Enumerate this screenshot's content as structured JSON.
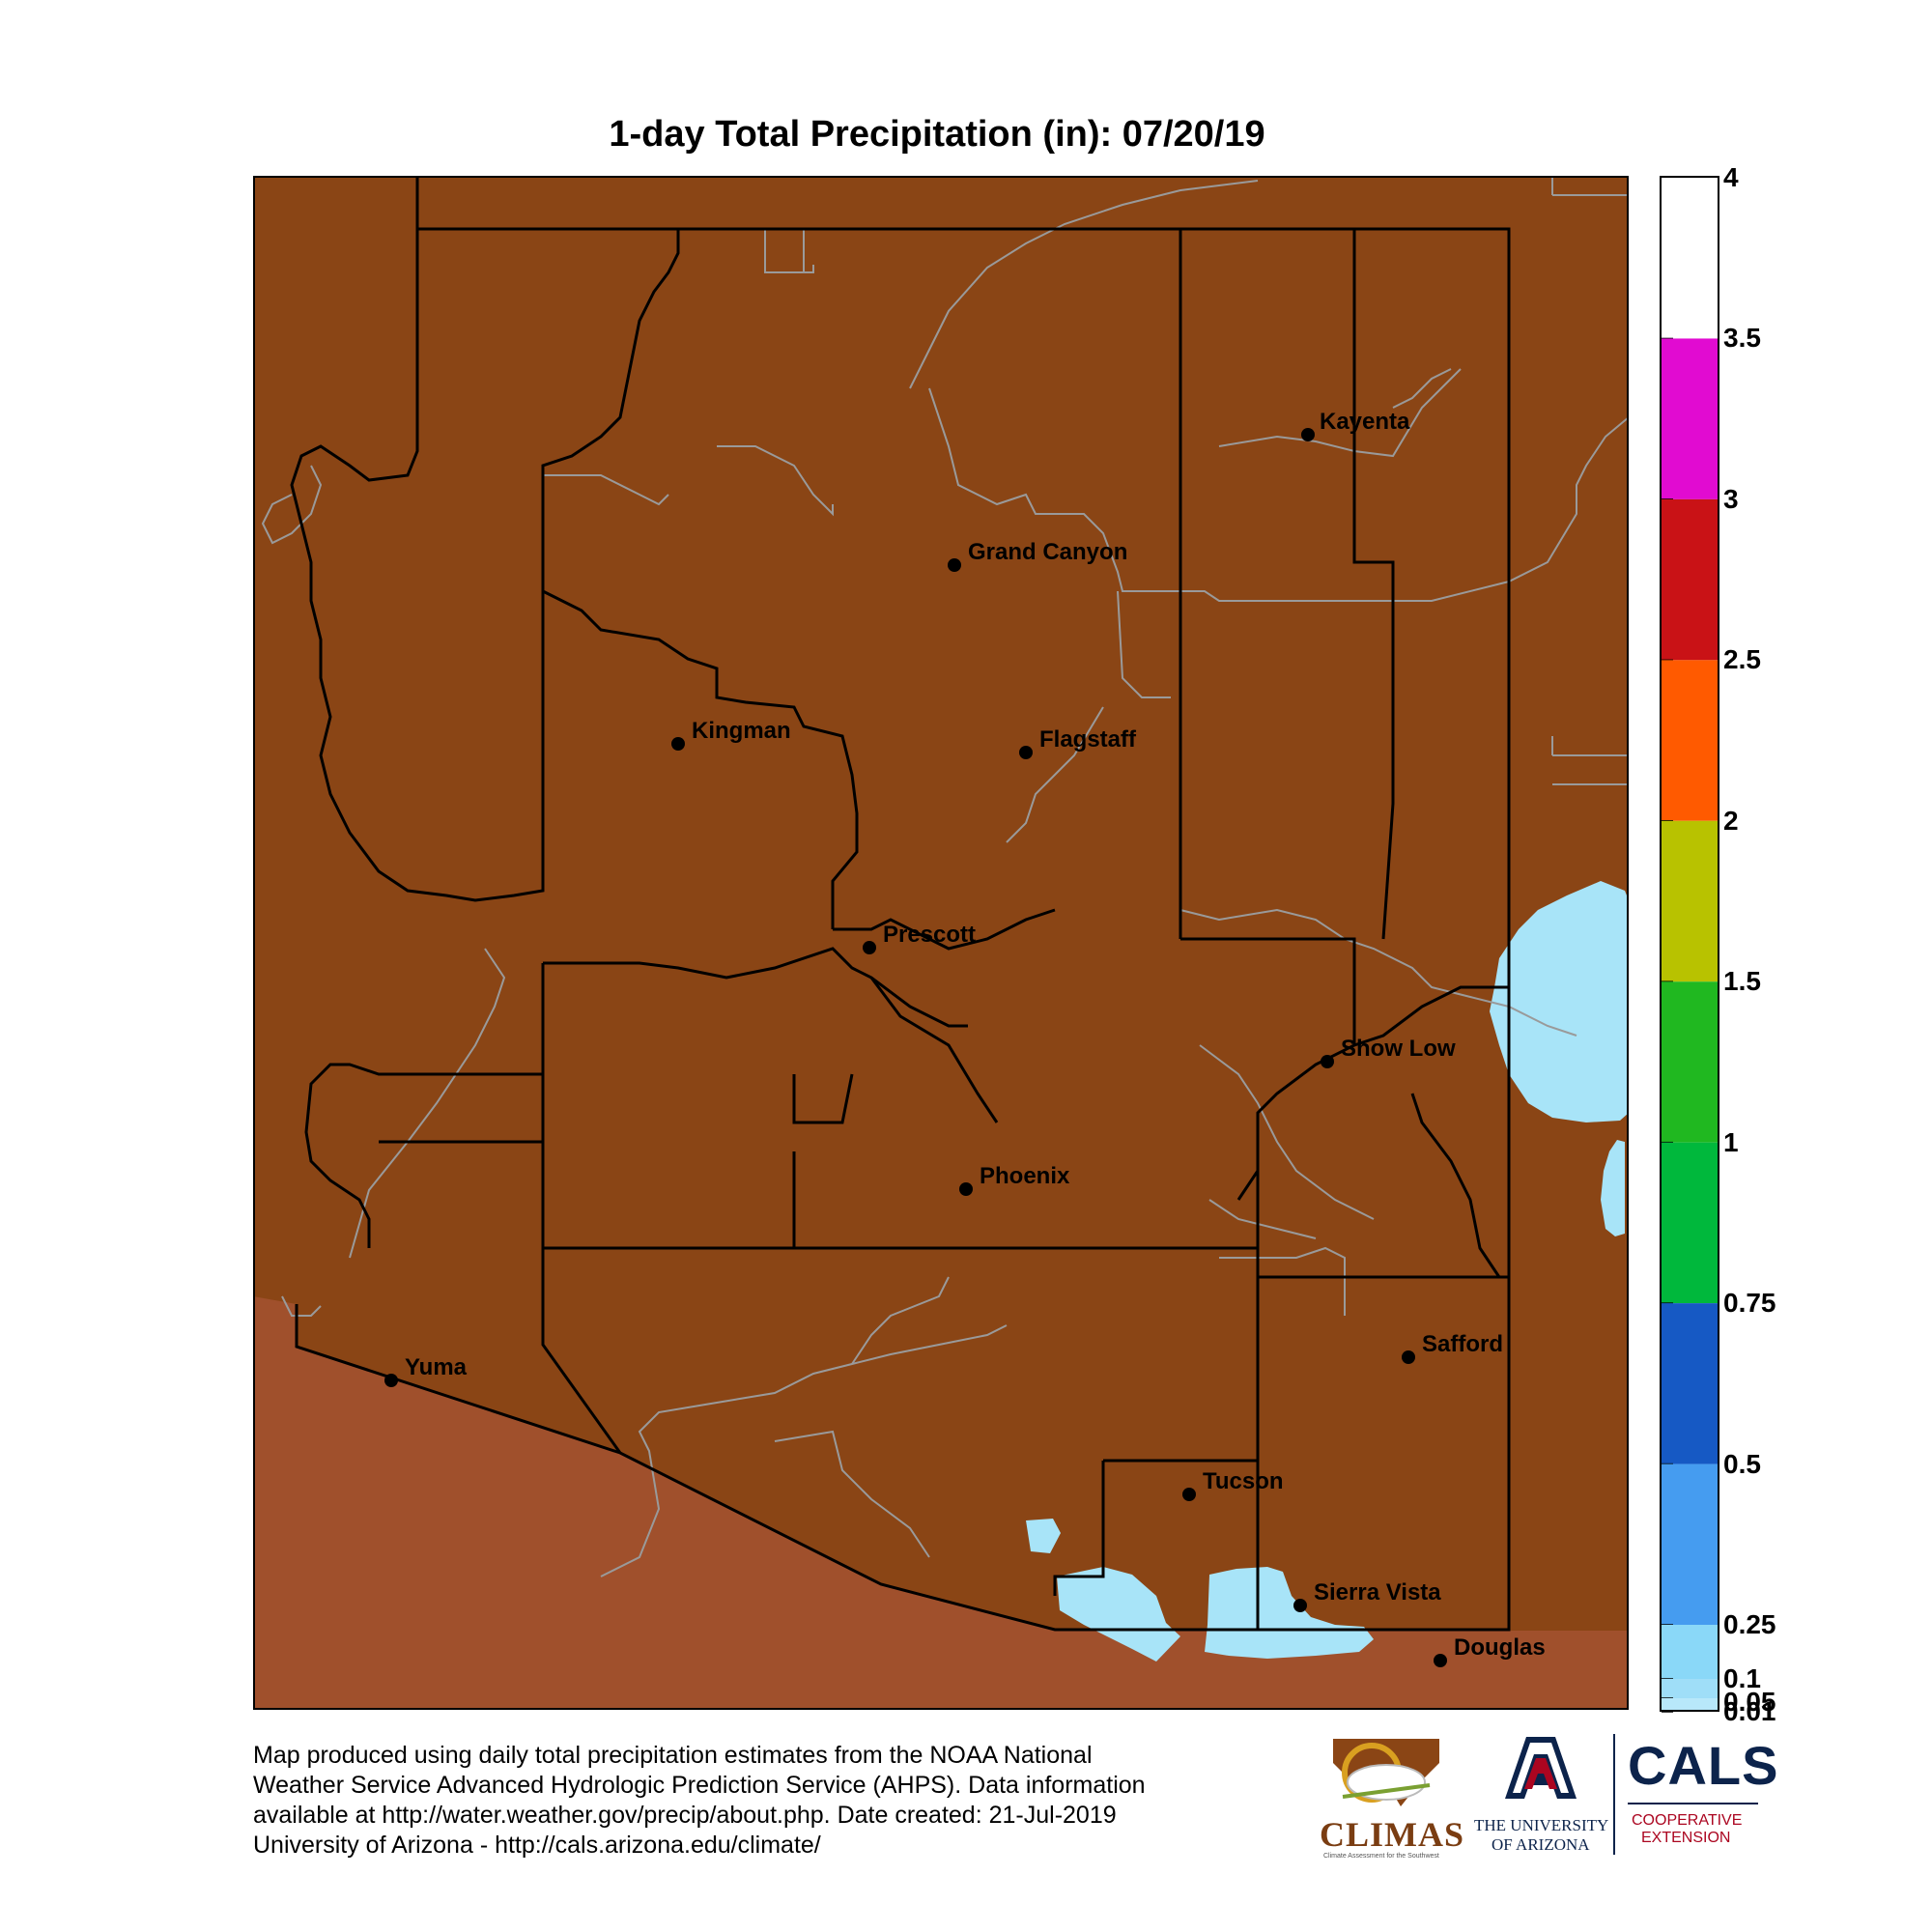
{
  "title": "1-day Total Precipitation (in): 07/20/19",
  "map": {
    "colors": {
      "no_precip": "#8a4515",
      "outside_state": "#a0502c",
      "light_precip": "#a8e4f8",
      "border": "#000000",
      "boundary_gray": "#9a9a9a"
    },
    "cities": [
      {
        "name": "Kayenta"
      },
      {
        "name": "Grand Canyon"
      },
      {
        "name": "Kingman"
      },
      {
        "name": "Flagstaff"
      },
      {
        "name": "Prescott"
      },
      {
        "name": "Show Low"
      },
      {
        "name": "Phoenix"
      },
      {
        "name": "Safford"
      },
      {
        "name": "Yuma"
      },
      {
        "name": "Tucson"
      },
      {
        "name": "Sierra Vista"
      },
      {
        "name": "Douglas"
      }
    ]
  },
  "legend": {
    "labels": [
      "4",
      "3.5",
      "3",
      "2.5",
      "2",
      "1.5",
      "1",
      "0.75",
      "0.5",
      "0.25",
      "0.1",
      "0.05",
      "0.01"
    ],
    "bins": [
      {
        "from": 3.5,
        "to": 4,
        "color": "#ffffff"
      },
      {
        "from": 3,
        "to": 3.5,
        "color": "#e10bd1"
      },
      {
        "from": 2.5,
        "to": 3,
        "color": "#c91216"
      },
      {
        "from": 2,
        "to": 2.5,
        "color": "#ff5a00"
      },
      {
        "from": 1.5,
        "to": 2,
        "color": "#b8c200"
      },
      {
        "from": 1,
        "to": 1.5,
        "color": "#20b820"
      },
      {
        "from": 0.75,
        "to": 1,
        "color": "#00b83c"
      },
      {
        "from": 0.5,
        "to": 0.75,
        "color": "#1659c4"
      },
      {
        "from": 0.25,
        "to": 0.5,
        "color": "#459cf0"
      },
      {
        "from": 0.1,
        "to": 0.25,
        "color": "#8ad8f8"
      },
      {
        "from": 0.05,
        "to": 0.1,
        "color": "#9fdef8"
      },
      {
        "from": 0.01,
        "to": 0.05,
        "color": "#b8e8fa"
      }
    ]
  },
  "footer": {
    "lines": [
      "Map produced using daily total precipitation estimates from the NOAA National",
      "Weather Service Advanced Hydrologic Prediction Service (AHPS). Data information",
      "available at http://water.weather.gov/precip/about.php. Date created: 21-Jul-2019",
      "University of Arizona - http://cals.arizona.edu/climate/"
    ]
  },
  "logos": {
    "climas": "CLIMAS",
    "climas_tagline": "Climate Assessment for the Southwest",
    "ua_line1": "THE UNIVERSITY",
    "ua_line2": "OF ARIZONA",
    "cals": "CALS",
    "cals_line1": "COOPERATIVE",
    "cals_line2": "EXTENSION"
  }
}
